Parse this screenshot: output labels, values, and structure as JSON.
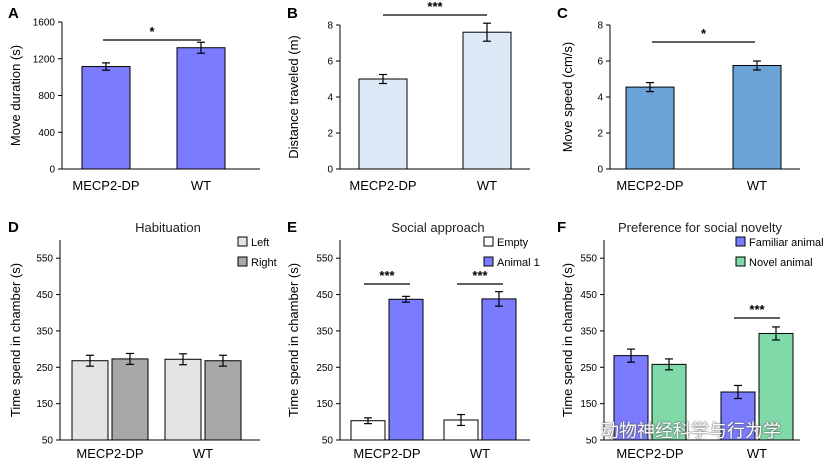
{
  "chart_data": [
    {
      "panel": "A",
      "type": "bar",
      "title": "",
      "ylabel": "Move duration (s)",
      "ylim": [
        0,
        1600
      ],
      "yticks": [
        0,
        400,
        800,
        1200,
        1600
      ],
      "categories": [
        "MECP2-DP",
        "WT"
      ],
      "series": [
        {
          "name": "Move duration",
          "color": "#7b7bff",
          "values": [
            1115,
            1320
          ],
          "errors": [
            40,
            60
          ]
        }
      ],
      "significance": [
        {
          "between": [
            0,
            1
          ],
          "label": "*"
        }
      ]
    },
    {
      "panel": "B",
      "type": "bar",
      "title": "",
      "ylabel": "Distance traveled (m)",
      "ylim": [
        0,
        8
      ],
      "yticks": [
        0,
        2,
        4,
        6,
        8
      ],
      "categories": [
        "MECP2-DP",
        "WT"
      ],
      "series": [
        {
          "name": "Distance traveled",
          "color": "#dde9f7",
          "values": [
            5.0,
            7.6
          ],
          "errors": [
            0.25,
            0.5
          ]
        }
      ],
      "significance": [
        {
          "between": [
            0,
            1
          ],
          "label": "***"
        }
      ]
    },
    {
      "panel": "C",
      "type": "bar",
      "title": "",
      "ylabel": "Move speed (cm/s)",
      "ylim": [
        0,
        8
      ],
      "yticks": [
        0,
        2,
        4,
        6,
        8
      ],
      "categories": [
        "MECP2-DP",
        "WT"
      ],
      "series": [
        {
          "name": "Move speed",
          "color": "#6ba3d6",
          "values": [
            4.55,
            5.75
          ],
          "errors": [
            0.25,
            0.25
          ]
        }
      ],
      "significance": [
        {
          "between": [
            0,
            1
          ],
          "label": "*"
        }
      ]
    },
    {
      "panel": "D",
      "type": "bar",
      "title": "Habituation",
      "ylabel": "Time spend in chamber (s)",
      "ylim": [
        50,
        600
      ],
      "yticks": [
        50,
        150,
        250,
        350,
        450,
        550
      ],
      "categories": [
        "MECP2-DP",
        "WT"
      ],
      "series": [
        {
          "name": "Left",
          "color": "#e4e4e4",
          "values": [
            268,
            272
          ],
          "errors": [
            15,
            15
          ]
        },
        {
          "name": "Right",
          "color": "#a8a8a8",
          "values": [
            273,
            268
          ],
          "errors": [
            15,
            15
          ]
        }
      ],
      "significance": []
    },
    {
      "panel": "E",
      "type": "bar",
      "title": "Social approach",
      "ylabel": "Time spend in chamber (s)",
      "ylim": [
        50,
        600
      ],
      "yticks": [
        50,
        150,
        250,
        350,
        450,
        550
      ],
      "categories": [
        "MECP2-DP",
        "WT"
      ],
      "series": [
        {
          "name": "Empty",
          "color": "#ffffff",
          "values": [
            103,
            105
          ],
          "errors": [
            8,
            15
          ]
        },
        {
          "name": "Animal 1",
          "color": "#7b7bff",
          "values": [
            437,
            438
          ],
          "errors": [
            8,
            20
          ]
        }
      ],
      "significance": [
        {
          "group": 0,
          "label": "***"
        },
        {
          "group": 1,
          "label": "***"
        }
      ]
    },
    {
      "panel": "F",
      "type": "bar",
      "title": "Preference for social novelty",
      "ylabel": "Time spend in chamber (s)",
      "ylim": [
        50,
        600
      ],
      "yticks": [
        50,
        150,
        250,
        350,
        450,
        550
      ],
      "categories": [
        "MECP2-DP",
        "WT"
      ],
      "series": [
        {
          "name": "Familiar animal",
          "color": "#7b7bff",
          "values": [
            282,
            182
          ],
          "errors": [
            18,
            18
          ]
        },
        {
          "name": "Novel animal",
          "color": "#7fd9a8",
          "values": [
            258,
            343
          ],
          "errors": [
            15,
            18
          ]
        }
      ],
      "significance": [
        {
          "group": 1,
          "label": "***"
        }
      ]
    }
  ],
  "watermark": {
    "text": "动物神经科学与行为学",
    "icon": "wechat-icon"
  }
}
